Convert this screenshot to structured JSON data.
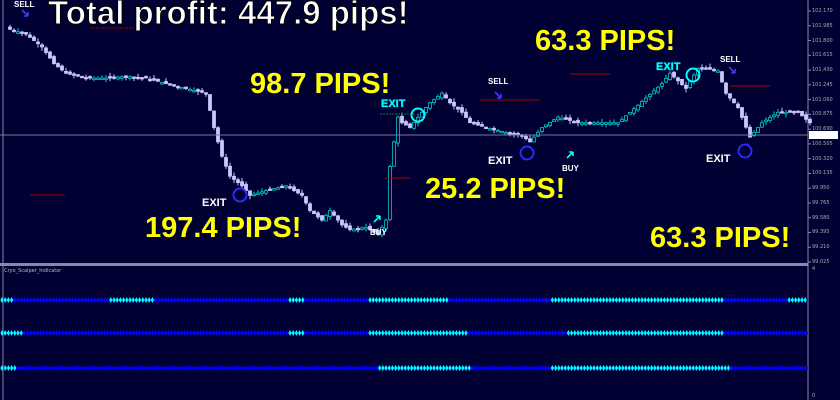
{
  "chart_data": {
    "type": "candlestick",
    "title": "",
    "y_axis": {
      "ticks": [
        "102.170",
        "101.985",
        "101.800",
        "101.615",
        "101.430",
        "101.245",
        "101.060",
        "100.875",
        "100.690",
        "100.505",
        "100.320",
        "100.135",
        "99.950",
        "99.765",
        "99.580",
        "99.395",
        "99.210",
        "99.025"
      ],
      "range": [
        99.025,
        102.17
      ]
    },
    "close_path": [
      [
        1,
        101.94
      ],
      [
        5,
        101.88
      ],
      [
        9,
        101.72
      ],
      [
        12,
        101.51
      ],
      [
        15,
        101.39
      ],
      [
        20,
        101.33
      ],
      [
        25,
        101.33
      ],
      [
        30,
        101.35
      ],
      [
        35,
        101.33
      ],
      [
        40,
        101.26
      ],
      [
        45,
        101.2
      ],
      [
        50,
        101.14
      ],
      [
        52,
        100.71
      ],
      [
        54,
        100.35
      ],
      [
        56,
        100.1
      ],
      [
        59,
        99.98
      ],
      [
        61,
        99.86
      ],
      [
        65,
        99.92
      ],
      [
        70,
        99.98
      ],
      [
        74,
        99.86
      ],
      [
        76,
        99.67
      ],
      [
        79,
        99.55
      ],
      [
        81,
        99.67
      ],
      [
        84,
        99.49
      ],
      [
        86,
        99.43
      ],
      [
        90,
        99.46
      ],
      [
        93,
        99.37
      ],
      [
        95,
        99.55
      ],
      [
        96,
        100.22
      ],
      [
        98,
        100.84
      ],
      [
        99,
        100.77
      ],
      [
        101,
        100.71
      ],
      [
        104,
        100.9
      ],
      [
        106,
        101.02
      ],
      [
        109,
        101.14
      ],
      [
        111,
        101.02
      ],
      [
        114,
        100.9
      ],
      [
        116,
        100.77
      ],
      [
        120,
        100.71
      ],
      [
        125,
        100.65
      ],
      [
        129,
        100.61
      ],
      [
        131,
        100.53
      ],
      [
        134,
        100.71
      ],
      [
        138,
        100.84
      ],
      [
        143,
        100.77
      ],
      [
        148,
        100.77
      ],
      [
        153,
        100.77
      ],
      [
        156,
        100.9
      ],
      [
        160,
        101.08
      ],
      [
        164,
        101.26
      ],
      [
        166,
        101.39
      ],
      [
        170,
        101.2
      ],
      [
        173,
        101.45
      ],
      [
        175,
        101.45
      ],
      [
        178,
        101.42
      ],
      [
        180,
        101.14
      ],
      [
        183,
        100.96
      ],
      [
        186,
        100.59
      ],
      [
        189,
        100.77
      ],
      [
        193,
        100.9
      ],
      [
        198,
        100.9
      ],
      [
        201,
        100.77
      ]
    ],
    "grid": false,
    "current_price_line": true
  },
  "headline": "Total profit: 447.9 pips!",
  "trades": [
    {
      "profit": "197.4 PIPS!"
    },
    {
      "profit": "98.7 PIPS!"
    },
    {
      "profit": "25.2 PIPS!"
    },
    {
      "profit": "63.3 PIPS!"
    },
    {
      "profit": "63.3 PIPS!"
    }
  ],
  "signals": {
    "sell": "SELL",
    "buy": "BUY",
    "exit": "EXIT"
  },
  "indicator": {
    "title": "Cryo_Scalper_Indicator",
    "axis_top": "4",
    "axis_bottom": "0",
    "rows": [
      {
        "active_ranges": [
          [
            0,
            14
          ],
          [
            108,
            154
          ],
          [
            288,
            305
          ],
          [
            367,
            448
          ],
          [
            551,
            725
          ],
          [
            788,
            808
          ]
        ]
      },
      {
        "active_ranges": [
          [
            0,
            24
          ],
          [
            288,
            305
          ],
          [
            367,
            467
          ],
          [
            568,
            725
          ]
        ]
      },
      {
        "active_ranges": [
          [
            0,
            17
          ],
          [
            378,
            470
          ],
          [
            551,
            729
          ]
        ]
      }
    ]
  },
  "colors": {
    "background": "#000033",
    "bull_candle": "#00c8c8",
    "bear_candle": "#c8c8ff",
    "profit_text": "#ffff00",
    "exit_cyan": "#00ffff",
    "exit_blue": "#2a2aff",
    "indicator_active": "#00ffff",
    "indicator_inactive": "#0000ff"
  }
}
